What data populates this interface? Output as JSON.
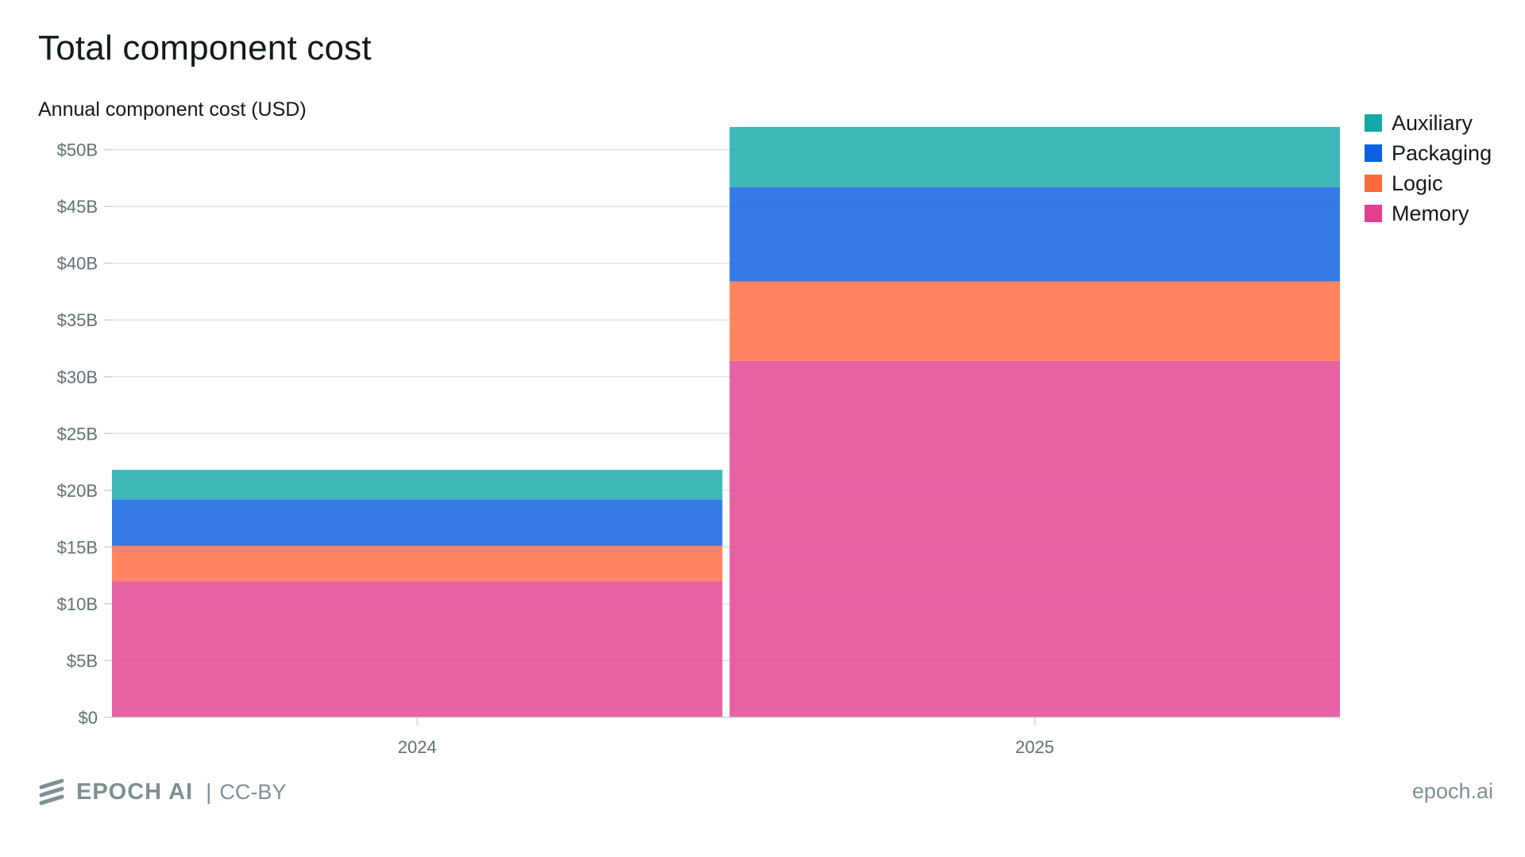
{
  "header": {
    "title": "Total component cost",
    "subtitle": "Annual component cost (USD)"
  },
  "legend": [
    {
      "label": "Auxiliary",
      "color": "#14a8a8"
    },
    {
      "label": "Packaging",
      "color": "#0b5fe0"
    },
    {
      "label": "Logic",
      "color": "#ff6a3d"
    },
    {
      "label": "Memory",
      "color": "#e2408f"
    }
  ],
  "footer": {
    "brand": "EPOCH AI",
    "separator": "|",
    "license": "CC-BY",
    "site": "epoch.ai"
  },
  "chart_data": {
    "type": "bar",
    "stacked": true,
    "title": "Total component cost",
    "ylabel": "Annual component cost (USD)",
    "xlabel": "",
    "categories": [
      "2024",
      "2025"
    ],
    "ylim": [
      0,
      52
    ],
    "yunit": "billion USD",
    "ytick_values": [
      0,
      5,
      10,
      15,
      20,
      25,
      30,
      35,
      40,
      45,
      50
    ],
    "ytick_labels": [
      "$0",
      "$5B",
      "$10B",
      "$15B",
      "$20B",
      "$25B",
      "$30B",
      "$35B",
      "$40B",
      "$45B",
      "$50B"
    ],
    "grid": true,
    "legend_position": "top-right",
    "series": [
      {
        "name": "Memory",
        "color": "#e2408f",
        "values": [
          12.0,
          31.4
        ]
      },
      {
        "name": "Logic",
        "color": "#ff6a3d",
        "values": [
          3.1,
          7.0
        ]
      },
      {
        "name": "Packaging",
        "color": "#0b5fe0",
        "values": [
          4.1,
          8.3
        ]
      },
      {
        "name": "Auxiliary",
        "color": "#14a8a8",
        "values": [
          2.6,
          5.3
        ]
      }
    ]
  }
}
